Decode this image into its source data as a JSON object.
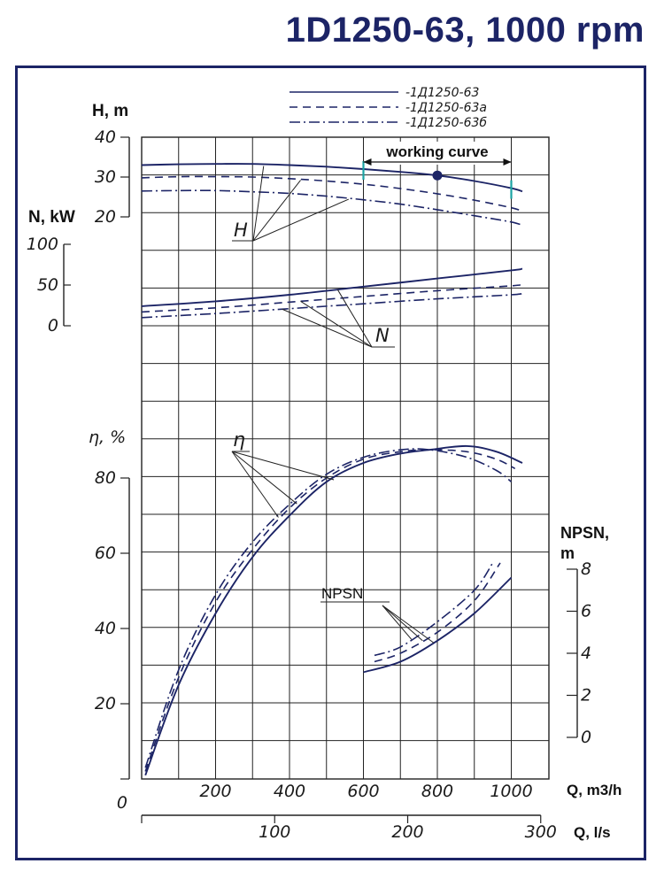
{
  "title": "1D1250-63, 1000 rpm",
  "chart_data": {
    "type": "line",
    "legend": {
      "placement": "top",
      "entries": [
        "-1Д1250-63",
        "-1Д1250-63а",
        "-1Д1250-63б"
      ]
    },
    "x_axis": {
      "label": "Q, m3/h",
      "range": [
        0,
        1100
      ],
      "ticks": [
        "200",
        "400",
        "600",
        "800",
        "1000"
      ]
    },
    "x2_axis": {
      "label": "Q, l/s",
      "range": [
        0,
        305
      ],
      "ticks": [
        "0",
        "100",
        "200",
        "300"
      ]
    },
    "axes": {
      "H": {
        "label": "H, m",
        "range": [
          20,
          40
        ],
        "ticks": [
          "20",
          "30",
          "40"
        ]
      },
      "N": {
        "label": "N, kW",
        "range": [
          0,
          100
        ],
        "ticks": [
          "0",
          "50",
          "100"
        ]
      },
      "eta": {
        "label": "η, %",
        "range": [
          0,
          80
        ],
        "ticks": [
          "0",
          "20",
          "40",
          "60",
          "80"
        ]
      },
      "npsh": {
        "label": "NPSN,\nm",
        "range": [
          0,
          8
        ],
        "ticks": [
          "0",
          "2",
          "4",
          "6",
          "8"
        ]
      }
    },
    "curve_labels": {
      "H": "H",
      "N": "N",
      "eta": "η",
      "npsh": "NPSN"
    },
    "annotations": {
      "working_curve": "working curve",
      "working_range": [
        600,
        1000
      ],
      "duty_point": [
        800,
        30.4
      ]
    },
    "H": [
      {
        "x": [
          0,
          100,
          200,
          300,
          400,
          500,
          600,
          700,
          800,
          900,
          1000,
          1030
        ],
        "y": [
          33.0,
          33.2,
          33.3,
          33.3,
          33.0,
          32.6,
          32.0,
          31.3,
          30.4,
          29.0,
          27.2,
          26.4
        ]
      },
      {
        "x": [
          0,
          100,
          200,
          300,
          400,
          500,
          600,
          700,
          800,
          900,
          1000,
          1030
        ],
        "y": [
          29.8,
          30.1,
          30.1,
          30.0,
          29.6,
          29.0,
          28.2,
          27.1,
          25.8,
          24.2,
          22.3,
          21.4
        ]
      },
      {
        "x": [
          0,
          100,
          200,
          300,
          400,
          500,
          600,
          700,
          800,
          900,
          1000,
          1030
        ],
        "y": [
          26.5,
          26.6,
          26.6,
          26.3,
          25.9,
          25.2,
          24.3,
          23.2,
          21.8,
          20.3,
          18.7,
          17.9
        ]
      }
    ],
    "N": [
      {
        "x": [
          0,
          200,
          400,
          600,
          800,
          1000,
          1030
        ],
        "y": [
          24,
          30,
          38,
          48,
          58,
          68,
          70
        ]
      },
      {
        "x": [
          0,
          200,
          400,
          600,
          800,
          1000,
          1030
        ],
        "y": [
          17,
          22,
          29,
          36,
          43,
          49,
          51
        ]
      },
      {
        "x": [
          0,
          200,
          400,
          600,
          800,
          1000,
          1030
        ],
        "y": [
          10,
          15,
          21,
          27,
          33,
          38,
          40
        ]
      }
    ],
    "eta": [
      {
        "x": [
          10,
          100,
          200,
          300,
          400,
          500,
          600,
          700,
          780,
          880,
          960,
          1030
        ],
        "y": [
          1,
          25,
          44,
          59,
          70,
          79,
          84,
          86.5,
          87.5,
          88.5,
          87,
          84
        ]
      },
      {
        "x": [
          10,
          100,
          200,
          300,
          400,
          500,
          600,
          700,
          780,
          880,
          960,
          1010
        ],
        "y": [
          2,
          27,
          47,
          61,
          72,
          80,
          85,
          87,
          87.5,
          87,
          85,
          82.5
        ]
      },
      {
        "x": [
          10,
          100,
          200,
          300,
          400,
          500,
          600,
          700,
          780,
          880,
          960,
          1000
        ],
        "y": [
          3,
          29,
          49,
          63,
          73,
          81,
          85.5,
          87.5,
          87.5,
          85.5,
          82,
          79
        ]
      }
    ],
    "npsh": [
      {
        "x": [
          600,
          700,
          800,
          900,
          1000
        ],
        "y": [
          3.1,
          3.6,
          4.6,
          5.9,
          7.6
        ]
      },
      {
        "x": [
          630,
          700,
          800,
          900,
          970
        ],
        "y": [
          3.6,
          4.0,
          5.0,
          6.5,
          8.3
        ]
      },
      {
        "x": [
          630,
          700,
          800,
          900,
          950
        ],
        "y": [
          3.9,
          4.3,
          5.5,
          7.0,
          8.3
        ]
      }
    ]
  }
}
